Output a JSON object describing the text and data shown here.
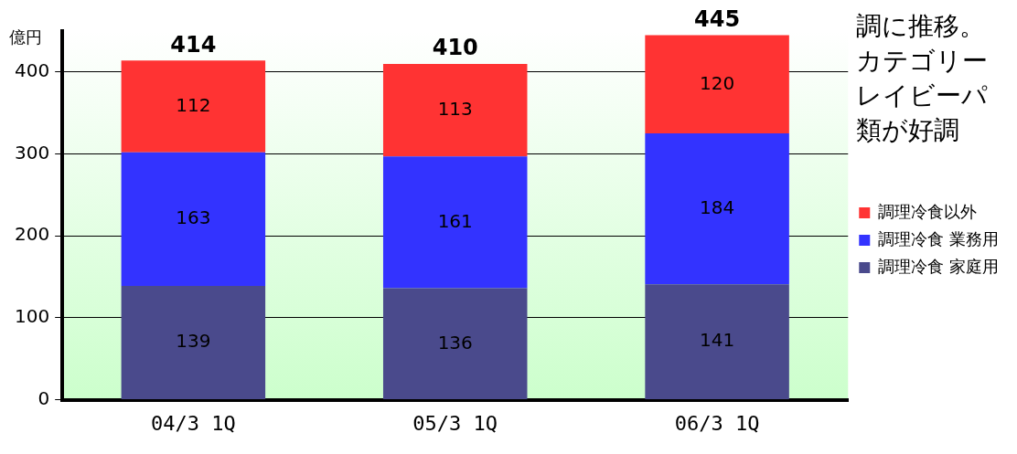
{
  "chart_data": {
    "type": "bar",
    "stacked": true,
    "ylabel": "億円",
    "categories": [
      "04/3 1Q",
      "05/3 1Q",
      "06/3 1Q"
    ],
    "series": [
      {
        "name": "調理冷食 家庭用",
        "color": "#4a4a8c",
        "values": [
          139,
          136,
          141
        ]
      },
      {
        "name": "調理冷食 業務用",
        "color": "#3333ff",
        "values": [
          163,
          161,
          184
        ]
      },
      {
        "name": "調理冷食以外",
        "color": "#ff3333",
        "values": [
          112,
          113,
          120
        ]
      }
    ],
    "ylim": [
      0,
      450
    ],
    "yticks": [
      0,
      100,
      200,
      300,
      400
    ],
    "grid": "y",
    "legend": "right",
    "data_labels": true,
    "totals": [
      "414",
      "410",
      "445"
    ],
    "annotations": [
      "調に推移。",
      "カテゴリー",
      "レイビーパ",
      "類が好調"
    ]
  }
}
